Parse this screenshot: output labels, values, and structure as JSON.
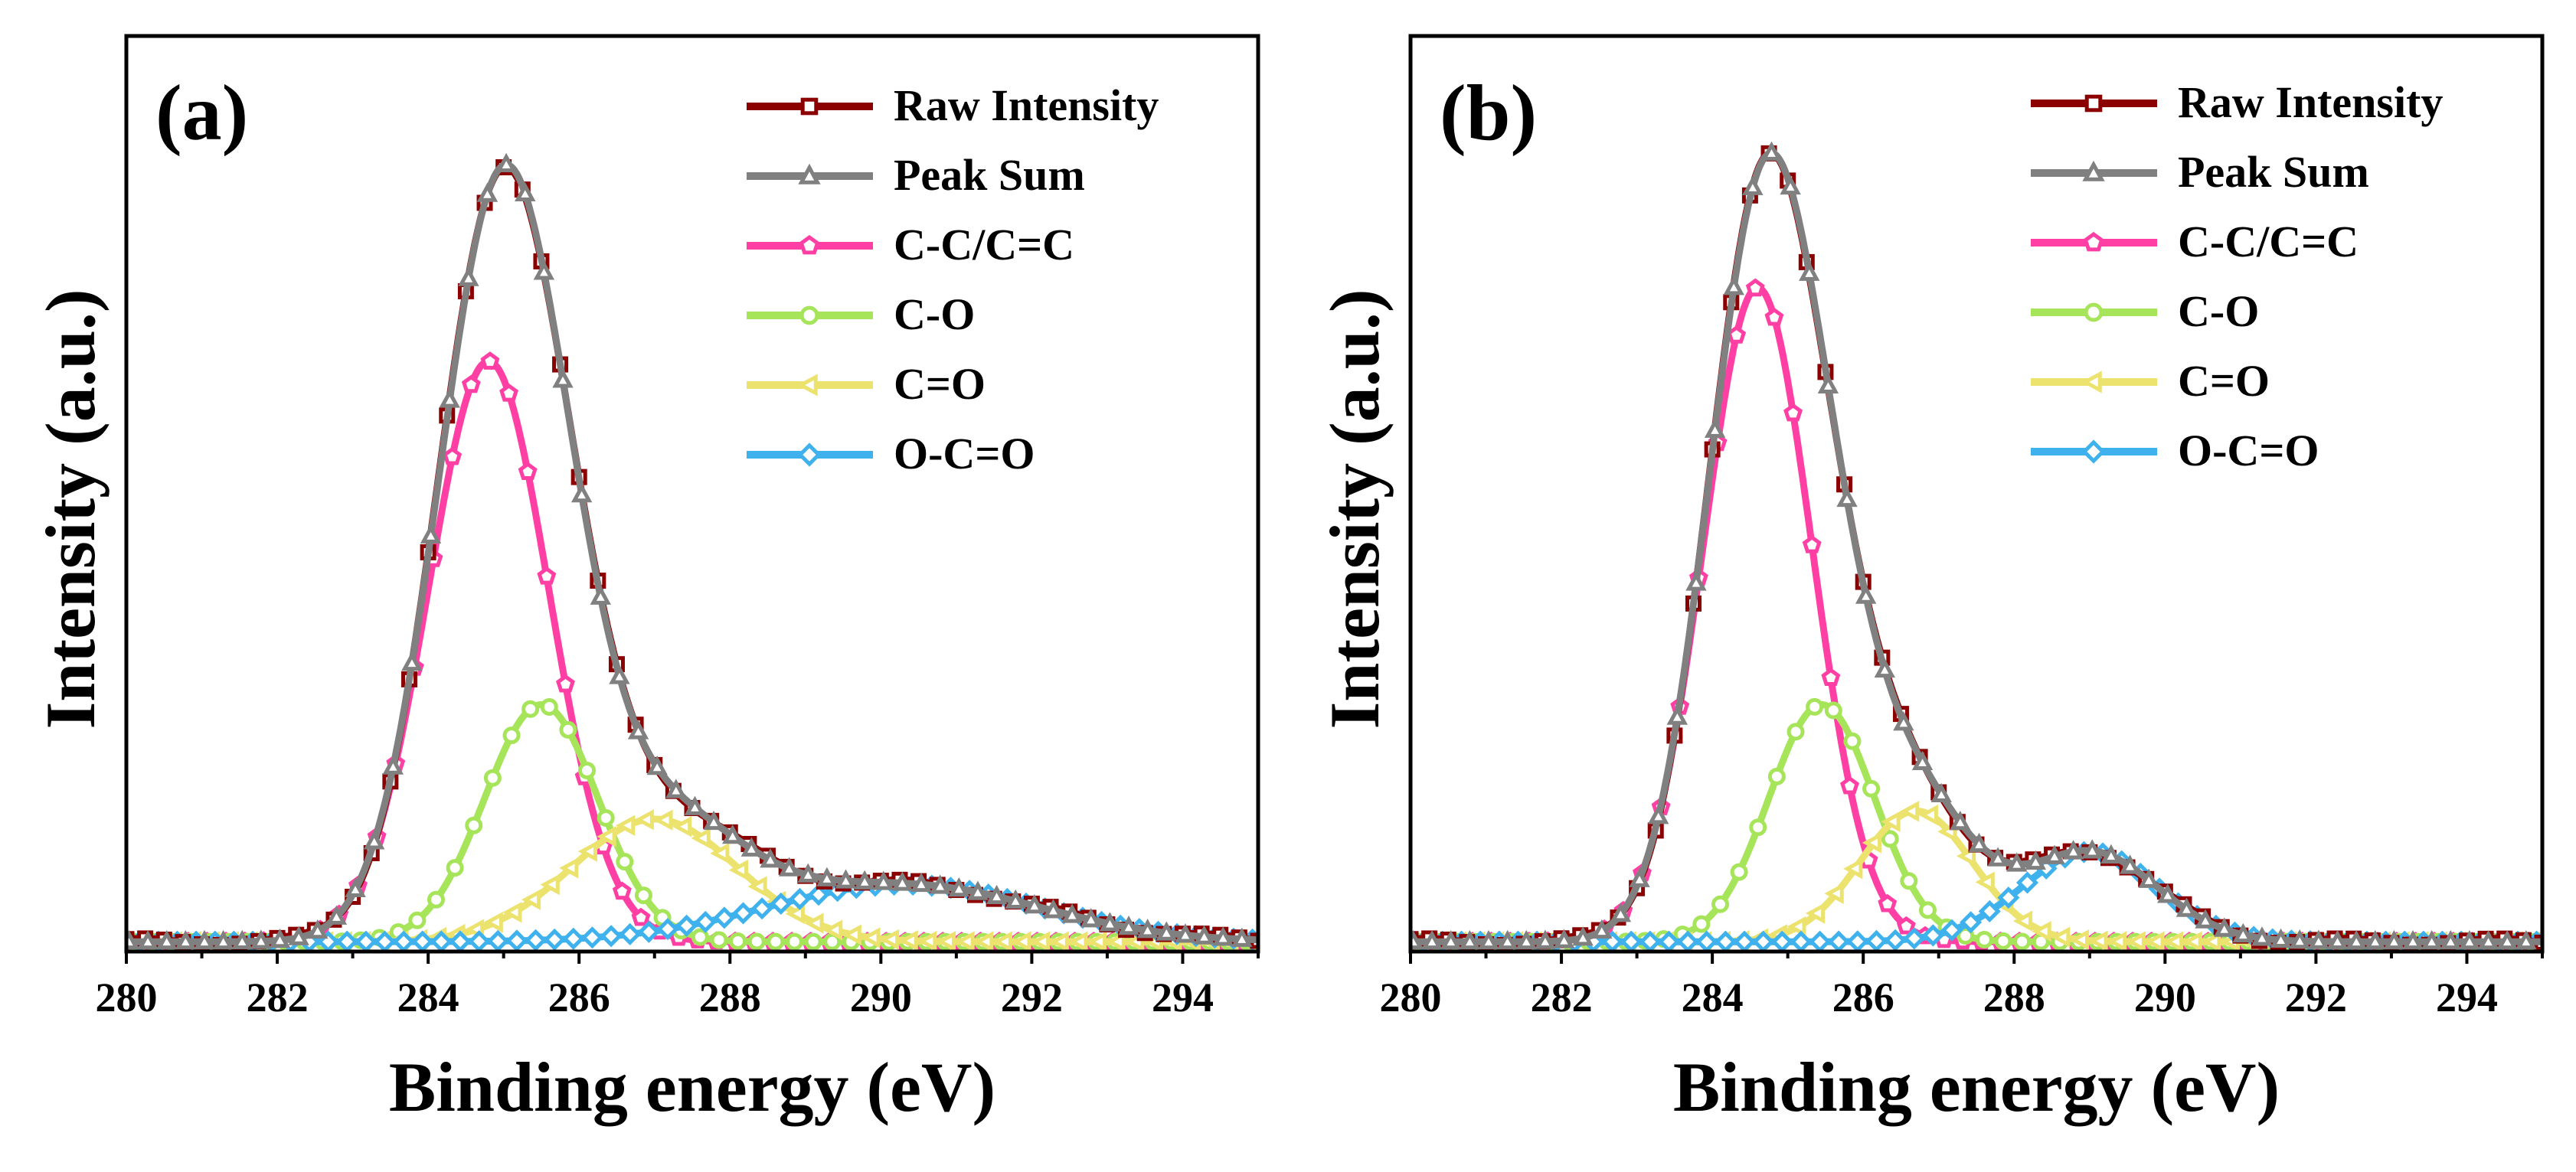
{
  "chart_data": [
    {
      "type": "line",
      "panel_label": "(a)",
      "xlabel": "Binding energy (eV)",
      "ylabel": "Intensity (a.u.)",
      "xlim": [
        280,
        295
      ],
      "ylim": [
        0,
        1.12
      ],
      "xticks": [
        "280",
        "282",
        "284",
        "286",
        "288",
        "290",
        "292",
        "294"
      ],
      "yticks_shown": false,
      "legend_position": "top-right",
      "legend": [
        "Raw Intensity",
        "Peak Sum",
        "C-C/C=C",
        "C-O",
        "C=O",
        "O-C=O"
      ],
      "series": [
        {
          "name": "Raw Intensity",
          "color": "#8b0000",
          "marker": "square",
          "peak": {
            "center": 285.05,
            "height": 1.0
          }
        },
        {
          "name": "Peak Sum",
          "color": "#808080",
          "marker": "triangle-up",
          "peak": {
            "center": 285.05,
            "height": 1.0
          }
        },
        {
          "name": "C-C/C=C",
          "color": "#ff3fa4",
          "marker": "pentagon",
          "peak": {
            "center": 284.8,
            "height": 0.71,
            "width": 0.8
          }
        },
        {
          "name": "C-O",
          "color": "#a6e45a",
          "marker": "circle",
          "peak": {
            "center": 285.5,
            "height": 0.29,
            "width": 0.75
          }
        },
        {
          "name": "C=O",
          "color": "#ece36f",
          "marker": "triangle-left",
          "peak": {
            "center": 287.0,
            "height": 0.15,
            "width": 1.1
          }
        },
        {
          "name": "O-C=O",
          "color": "#3fb2ee",
          "marker": "diamond",
          "peak": {
            "center": 290.3,
            "height": 0.07,
            "width": 1.8
          }
        }
      ]
    },
    {
      "type": "line",
      "panel_label": "(b)",
      "xlabel": "Binding energy (eV)",
      "ylabel": "Intensity (a.u.)",
      "xlim": [
        280,
        295
      ],
      "ylim": [
        0,
        1.12
      ],
      "xticks": [
        "280",
        "282",
        "284",
        "286",
        "288",
        "290",
        "292",
        "294"
      ],
      "yticks_shown": false,
      "legend_position": "top-right",
      "legend": [
        "Raw Intensity",
        "Peak Sum",
        "C-C/C=C",
        "C-O",
        "C=O",
        "O-C=O"
      ],
      "series": [
        {
          "name": "Raw Intensity",
          "color": "#8b0000",
          "marker": "square",
          "peak": {
            "center": 284.9,
            "height": 1.0
          }
        },
        {
          "name": "Peak Sum",
          "color": "#808080",
          "marker": "triangle-up",
          "peak": {
            "center": 284.9,
            "height": 1.0
          }
        },
        {
          "name": "C-C/C=C",
          "color": "#ff3fa4",
          "marker": "pentagon",
          "peak": {
            "center": 284.6,
            "height": 0.8,
            "width": 0.72
          }
        },
        {
          "name": "C-O",
          "color": "#a6e45a",
          "marker": "circle",
          "peak": {
            "center": 285.45,
            "height": 0.29,
            "width": 0.7
          }
        },
        {
          "name": "C=O",
          "color": "#ece36f",
          "marker": "triangle-left",
          "peak": {
            "center": 286.7,
            "height": 0.16,
            "width": 0.75
          }
        },
        {
          "name": "O-C=O",
          "color": "#3fb2ee",
          "marker": "diamond",
          "peak": {
            "center": 289.0,
            "height": 0.11,
            "width": 0.9
          }
        }
      ]
    }
  ]
}
